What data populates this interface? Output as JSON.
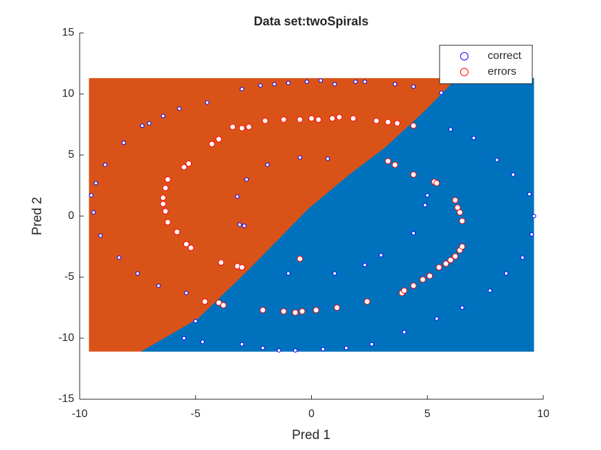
{
  "chart_data": {
    "type": "scatter",
    "title": "Data set:twoSpirals",
    "x_label": "Pred 1",
    "y_label": "Pred 2",
    "xlim": [
      -10,
      10
    ],
    "ylim": [
      -15,
      15
    ],
    "xticks": [
      -10,
      -5,
      0,
      5,
      10
    ],
    "yticks": [
      -15,
      -10,
      -5,
      0,
      5,
      10,
      15
    ],
    "legend": "upper right",
    "region": {
      "xlim": [
        -9.6,
        9.6
      ],
      "ylim": [
        -11.1,
        11.3
      ],
      "color": "#d95319"
    },
    "boundary": {
      "x": [
        -7.36,
        -4.9,
        -2.77,
        -0.1,
        1.7,
        3.16,
        4.93,
        6.27
      ],
      "y": [
        -11.1,
        -8.4,
        -4.5,
        0.67,
        3.5,
        5.6,
        8.7,
        11.3
      ],
      "color": "#0072bd"
    },
    "series": [
      {
        "name": "correct",
        "color": "#0000ff",
        "x": [
          -3.0,
          -2.2,
          -1.6,
          -1.0,
          -0.2,
          0.4,
          1.0,
          1.9,
          2.3,
          3.6,
          4.4,
          5.6,
          -4.5,
          -5.7,
          -6.4,
          -7.3,
          -8.1,
          -8.9,
          -9.3,
          -9.5,
          -9.4,
          -9.1,
          -8.3,
          -7.5,
          -6.6,
          -5.4,
          -5.5,
          -4.7,
          -3.0,
          -2.1,
          -1.4,
          -0.7,
          0.5,
          1.5,
          2.6,
          4.0,
          5.4,
          6.5,
          7.7,
          8.4,
          9.1,
          9.5,
          9.6,
          9.4,
          8.7,
          8.0,
          7.0,
          6.0,
          -2.8,
          -1.9,
          -0.5,
          0.7,
          -3.2,
          -3.1,
          -2.9,
          -1.0,
          1.0,
          2.3,
          3.0,
          4.4,
          4.9,
          5.0,
          -5.0,
          -7.0
        ],
        "y": [
          10.4,
          10.7,
          10.8,
          10.9,
          11.0,
          11.1,
          10.8,
          11.0,
          11.0,
          10.8,
          10.6,
          10.1,
          9.3,
          8.8,
          8.2,
          7.4,
          6.0,
          4.2,
          2.7,
          1.7,
          0.3,
          -1.6,
          -3.4,
          -4.7,
          -5.7,
          -6.3,
          -10.0,
          -10.3,
          -10.5,
          -10.8,
          -11.0,
          -11.0,
          -10.9,
          -10.8,
          -10.5,
          -9.5,
          -8.4,
          -7.5,
          -6.1,
          -4.7,
          -3.4,
          -1.5,
          0.0,
          1.8,
          3.4,
          4.6,
          6.4,
          7.1,
          3.0,
          4.2,
          4.8,
          4.7,
          1.6,
          -0.7,
          -0.8,
          -4.7,
          -4.7,
          -4.0,
          -3.2,
          -1.4,
          0.9,
          1.7,
          -8.6,
          7.6
        ]
      },
      {
        "name": "errors",
        "color": "#ff0000",
        "x": [
          -2.0,
          -1.2,
          -0.5,
          0.0,
          0.3,
          0.9,
          1.2,
          1.8,
          2.8,
          3.3,
          3.7,
          4.4,
          -3.4,
          -3.0,
          -2.7,
          -4.0,
          -4.3,
          -5.3,
          -5.5,
          -6.2,
          -6.3,
          -6.4,
          -6.4,
          -6.3,
          -6.2,
          -5.8,
          -5.4,
          -5.2,
          -3.9,
          -3.2,
          -3.0,
          -4.6,
          -4.0,
          -3.8,
          -0.5,
          -2.1,
          -1.2,
          -0.7,
          -0.4,
          0.2,
          1.1,
          2.4,
          3.9,
          4.0,
          4.4,
          4.8,
          5.1,
          5.5,
          5.8,
          6.0,
          6.2,
          6.4,
          6.5,
          6.2,
          6.3,
          6.4,
          6.5,
          5.3,
          5.4,
          4.4,
          3.6,
          3.3
        ],
        "y": [
          7.8,
          7.9,
          7.9,
          8.0,
          7.9,
          8.0,
          8.1,
          8.0,
          7.8,
          7.7,
          7.6,
          7.4,
          7.3,
          7.2,
          7.3,
          6.3,
          5.9,
          4.3,
          4.0,
          3.0,
          2.3,
          1.5,
          1.0,
          0.4,
          -0.5,
          -1.3,
          -2.3,
          -2.6,
          -3.8,
          -4.1,
          -4.2,
          -7.0,
          -7.1,
          -7.3,
          -3.5,
          -7.7,
          -7.8,
          -7.9,
          -7.8,
          -7.7,
          -7.5,
          -7.0,
          -6.3,
          -6.1,
          -5.7,
          -5.2,
          -4.9,
          -4.2,
          -3.9,
          -3.6,
          -3.3,
          -2.8,
          -2.5,
          1.3,
          0.7,
          0.3,
          -0.4,
          2.8,
          2.7,
          3.4,
          4.2,
          4.5
        ]
      }
    ]
  }
}
